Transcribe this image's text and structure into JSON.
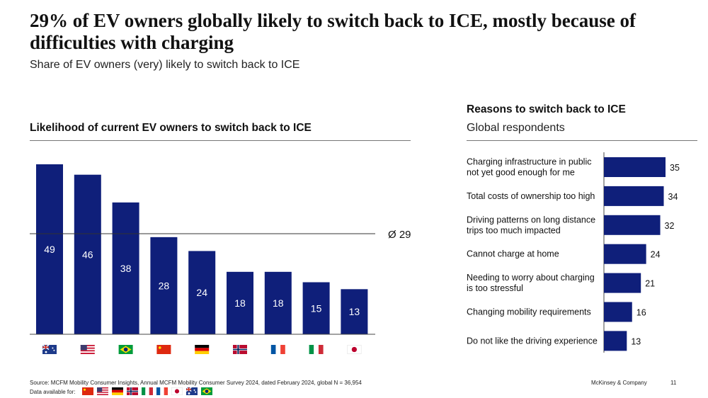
{
  "title": "29% of EV owners globally likely to switch back to ICE, mostly because of difficulties with charging",
  "subtitle": "Share of EV owners (very) likely to switch back to ICE",
  "colors": {
    "bar": "#0f1f7a",
    "bar_label": "#ffffff",
    "text": "#111111"
  },
  "chart_data": [
    {
      "type": "bar",
      "title": "Likelihood of current EV owners to switch back to ICE",
      "categories": [
        "Australia",
        "USA",
        "Brazil",
        "China",
        "Germany",
        "Norway",
        "France",
        "Italy",
        "Japan"
      ],
      "category_icons": [
        "flag-australia-icon",
        "flag-usa-icon",
        "flag-brazil-icon",
        "flag-china-icon",
        "flag-germany-icon",
        "flag-norway-icon",
        "flag-france-icon",
        "flag-italy-icon",
        "flag-japan-icon"
      ],
      "values": [
        49,
        46,
        38,
        28,
        24,
        18,
        18,
        15,
        13
      ],
      "ylim": [
        0,
        49
      ],
      "grid": false,
      "reference_line": {
        "value": 29,
        "label": "Ø 29"
      }
    },
    {
      "type": "bar",
      "orientation": "horizontal",
      "title": "Reasons to switch back to ICE",
      "subtitle": "Global respondents",
      "categories": [
        [
          "Charging infrastructure in public",
          "not yet good enough for me"
        ],
        [
          "Total costs of ownership too high"
        ],
        [
          "Driving patterns on long distance",
          "trips too much impacted"
        ],
        [
          "Cannot charge at home"
        ],
        [
          "Needing to worry about charging",
          "is too stressful"
        ],
        [
          "Changing mobility requirements"
        ],
        [
          "Do not like the driving experience"
        ]
      ],
      "values": [
        35,
        34,
        32,
        24,
        21,
        16,
        13
      ],
      "xlim": [
        0,
        35
      ],
      "grid": false
    }
  ],
  "footer": {
    "source": "Source: MCFM Mobility Consumer Insights, Annual MCFM Mobility Consumer Survey 2024, dated February 2024, global N = 36,954",
    "data_available": "Data available for:",
    "data_available_flags": [
      "flag-china-icon",
      "flag-usa-icon",
      "flag-germany-icon",
      "flag-norway-icon",
      "flag-italy-icon",
      "flag-france-icon",
      "flag-japan-icon",
      "flag-australia-icon",
      "flag-brazil-icon"
    ],
    "brand": "McKinsey & Company",
    "page_number": "11"
  }
}
